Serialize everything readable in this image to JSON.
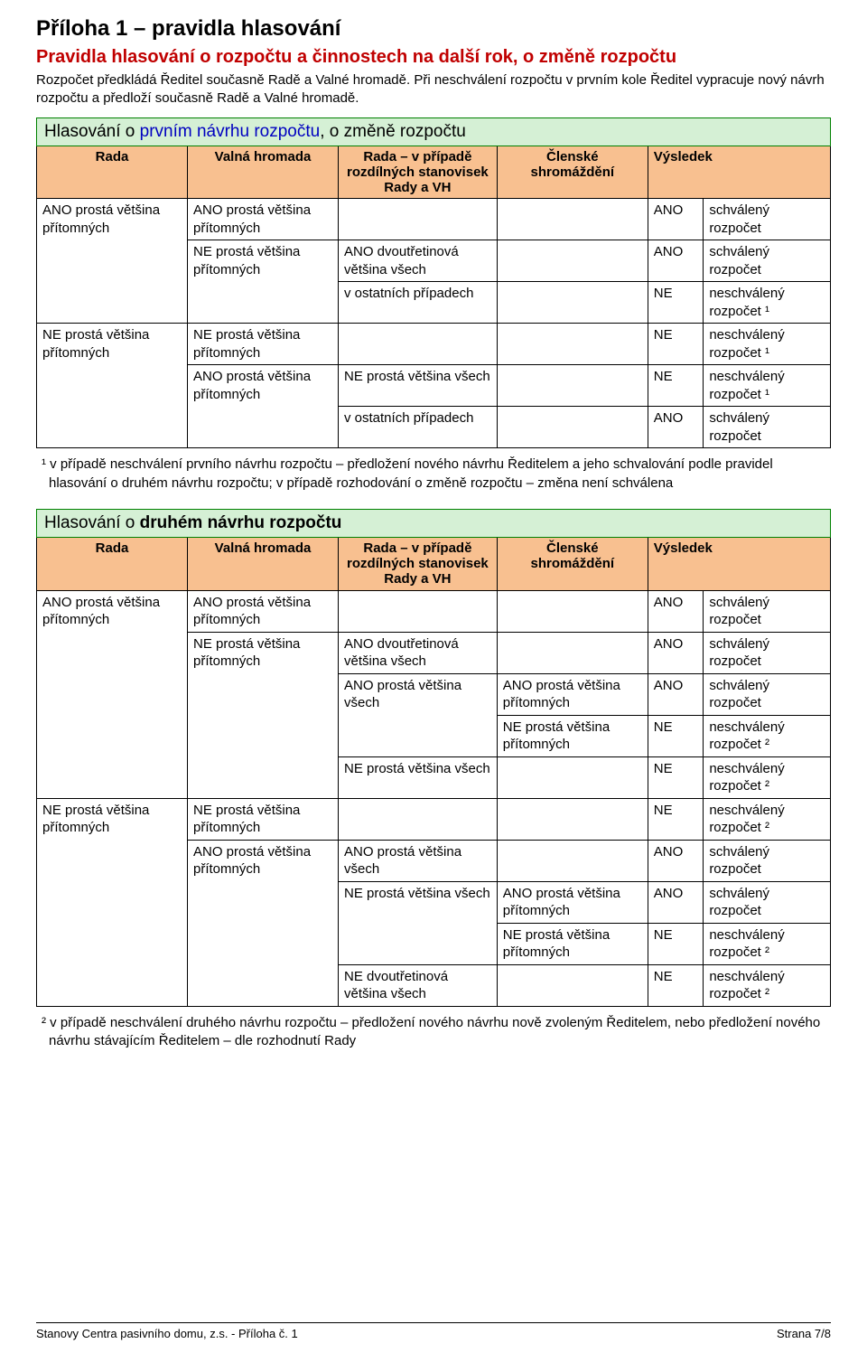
{
  "heading1": "Příloha 1 – pravidla hlasování",
  "heading2": "Pravidla hlasování o rozpočtu a činnostech na další rok, o změně rozpočtu",
  "intro1": "Rozpočet předkládá Ředitel současně Radě a Valné hromadě. Při neschválení rozpočtu v prvním kole Ředitel vypracuje nový návrh rozpočtu a předloží současně Radě a Valné hromadě.",
  "colors": {
    "section_bg": "#d5f0d5",
    "section_border": "#008000",
    "header_bg": "#f8c090",
    "link_blue": "#0000c0",
    "title_red": "#c00000"
  },
  "section1_lead": "Hlasování o ",
  "section1_blue": "prvním návrhu rozpočtu",
  "section1_tail": ", o změně rozpočtu",
  "cols": {
    "rada": "Rada",
    "vh": "Valná hromada",
    "rada_vh": "Rada – v případě rozdílných stanovisek Rady a VH",
    "clenske": "Členské shromáždění",
    "vysledek": "Výsledek"
  },
  "txt": {
    "ano_pv": "ANO prostá většina přítomných",
    "ne_pv": "NE prostá většina přítomných",
    "ano_23": "ANO dvoutřetinová většina všech",
    "ne_23": "NE dvoutřetinová většina všech",
    "ostatni": "v ostatních případech",
    "ne_pvs": "NE prostá většina všech",
    "ano_pvs": "ANO prostá většina všech",
    "ANO": "ANO",
    "NE": "NE",
    "schv": "schválený rozpočet",
    "neschv1": "neschválený rozpočet ¹",
    "neschv2": "neschválený rozpočet ²"
  },
  "footnote1": "¹ v případě neschválení prvního návrhu rozpočtu – předložení nového návrhu Ředitelem a jeho schvalování podle pravidel hlasování o druhém návrhu rozpočtu; v případě rozhodování o změně rozpočtu – změna není schválena",
  "section2_lead": "Hlasování o ",
  "section2_bold": "druhém návrhu rozpočtu",
  "footnote2": "² v případě neschválení druhého návrhu rozpočtu – předložení nového návrhu nově zvoleným Ředitelem, nebo předložení nového návrhu stávajícím Ředitelem – dle rozhodnutí Rady",
  "footer_left": "Stanovy Centra pasivního domu, z.s. - Příloha č. 1",
  "footer_right": "Strana 7/8"
}
